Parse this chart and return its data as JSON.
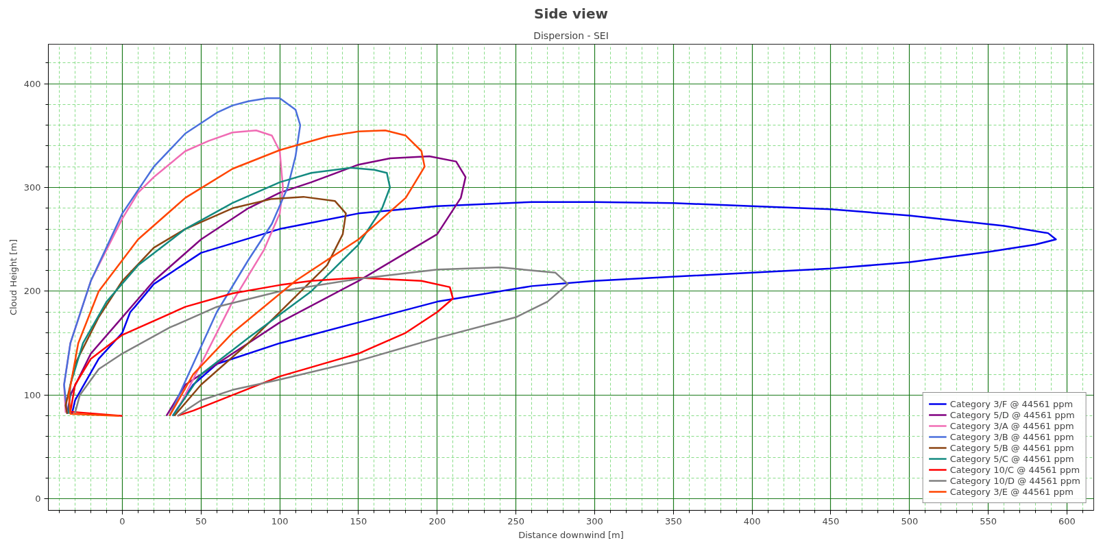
{
  "chart_data": {
    "type": "line",
    "title": "Side view",
    "subtitle": "Dispersion - SEI",
    "xlabel": "Distance downwind [m]",
    "ylabel": "Cloud Height [m]",
    "xlim": [
      -47,
      617
    ],
    "ylim": [
      -11,
      438
    ],
    "xticks": [
      {
        "value": -40,
        "label": null
      },
      {
        "value": -30,
        "label": null
      },
      {
        "value": -20,
        "label": null
      },
      {
        "value": -10,
        "label": null
      },
      0,
      {
        "value": 10,
        "label": null
      },
      {
        "value": 20,
        "label": null
      },
      {
        "value": 30,
        "label": null
      },
      {
        "value": 40,
        "label": null
      },
      50,
      {
        "value": 60,
        "label": null
      },
      {
        "value": 70,
        "label": null
      },
      {
        "value": 80,
        "label": null
      },
      {
        "value": 90,
        "label": null
      },
      100,
      {
        "value": 110,
        "label": null
      },
      {
        "value": 120,
        "label": null
      },
      {
        "value": 130,
        "label": null
      },
      {
        "value": 140,
        "label": null
      },
      150,
      {
        "value": 160,
        "label": null
      },
      {
        "value": 170,
        "label": null
      },
      {
        "value": 180,
        "label": null
      },
      {
        "value": 190,
        "label": null
      },
      200,
      {
        "value": 210,
        "label": null
      },
      {
        "value": 220,
        "label": null
      },
      {
        "value": 230,
        "label": null
      },
      {
        "value": 240,
        "label": null
      },
      250,
      {
        "value": 260,
        "label": null
      },
      {
        "value": 270,
        "label": null
      },
      {
        "value": 280,
        "label": null
      },
      {
        "value": 290,
        "label": null
      },
      300,
      {
        "value": 310,
        "label": null
      },
      {
        "value": 320,
        "label": null
      },
      {
        "value": 330,
        "label": null
      },
      {
        "value": 340,
        "label": null
      },
      350,
      {
        "value": 360,
        "label": null
      },
      {
        "value": 370,
        "label": null
      },
      {
        "value": 380,
        "label": null
      },
      {
        "value": 390,
        "label": null
      },
      400,
      {
        "value": 410,
        "label": null
      },
      {
        "value": 420,
        "label": null
      },
      {
        "value": 430,
        "label": null
      },
      {
        "value": 440,
        "label": null
      },
      450,
      {
        "value": 460,
        "label": null
      },
      {
        "value": 470,
        "label": null
      },
      {
        "value": 480,
        "label": null
      },
      {
        "value": 490,
        "label": null
      },
      500,
      {
        "value": 510,
        "label": null
      },
      {
        "value": 520,
        "label": null
      },
      {
        "value": 530,
        "label": null
      },
      {
        "value": 540,
        "label": null
      },
      550,
      {
        "value": 560,
        "label": null
      },
      {
        "value": 570,
        "label": null
      },
      {
        "value": 580,
        "label": null
      },
      {
        "value": 590,
        "label": null
      },
      600,
      {
        "value": 610,
        "label": null
      }
    ],
    "yticks": [
      0,
      {
        "value": 20,
        "label": null
      },
      {
        "value": 40,
        "label": null
      },
      {
        "value": 60,
        "label": null
      },
      {
        "value": 80,
        "label": null
      },
      100,
      {
        "value": 120,
        "label": null
      },
      {
        "value": 140,
        "label": null
      },
      {
        "value": 160,
        "label": null
      },
      {
        "value": 180,
        "label": null
      },
      200,
      {
        "value": 220,
        "label": null
      },
      {
        "value": 240,
        "label": null
      },
      {
        "value": 260,
        "label": null
      },
      {
        "value": 280,
        "label": null
      },
      300,
      {
        "value": 320,
        "label": null
      },
      {
        "value": 340,
        "label": null
      },
      {
        "value": 360,
        "label": null
      },
      {
        "value": 380,
        "label": null
      },
      400,
      {
        "value": 420,
        "label": null
      }
    ],
    "grid": true,
    "legend": "bottom right",
    "marker": "none",
    "line_style": "solid",
    "series": [
      {
        "name": "Category 3/F @ 44561 ppm",
        "color": "#0000ee",
        "x": [
          32,
          45,
          60,
          100,
          150,
          200,
          260,
          300,
          400,
          450,
          500,
          550,
          580,
          593,
          588,
          560,
          500,
          450,
          400,
          350,
          300,
          260,
          200,
          150,
          100,
          50,
          20,
          8,
          5,
          0,
          -15,
          -30,
          -32
        ],
        "values": [
          80,
          110,
          130,
          150,
          170,
          190,
          205,
          210,
          218,
          222,
          228,
          238,
          245,
          250,
          256,
          263,
          273,
          279,
          282,
          285,
          286,
          286,
          282,
          275,
          260,
          237,
          207,
          185,
          180,
          160,
          135,
          95,
          82
        ]
      },
      {
        "name": "Category 5/D @ 44561 ppm",
        "color": "#800080",
        "x": [
          28,
          40,
          60,
          100,
          150,
          200,
          215,
          218,
          212,
          195,
          170,
          150,
          120,
          100,
          80,
          50,
          20,
          0,
          -20,
          -33,
          -35
        ],
        "values": [
          80,
          110,
          130,
          170,
          210,
          255,
          290,
          310,
          325,
          330,
          328,
          322,
          305,
          295,
          280,
          250,
          210,
          175,
          140,
          100,
          82
        ]
      },
      {
        "name": "Category 3/A @ 44561 ppm",
        "color": "#f06cb4",
        "x": [
          33,
          50,
          70,
          90,
          100,
          102,
          100,
          95,
          85,
          70,
          55,
          40,
          20,
          10,
          0,
          -20,
          -33,
          -37,
          -36
        ],
        "values": [
          80,
          130,
          190,
          240,
          275,
          300,
          335,
          350,
          355,
          353,
          345,
          335,
          310,
          295,
          270,
          210,
          150,
          110,
          83
        ]
      },
      {
        "name": "Category 3/B @ 44561 ppm",
        "color": "#4a6fdc",
        "x": [
          30,
          45,
          60,
          80,
          95,
          105,
          110,
          113,
          110,
          100,
          92,
          80,
          70,
          60,
          40,
          20,
          0,
          -20,
          -33,
          -37,
          -35
        ],
        "values": [
          80,
          130,
          180,
          230,
          265,
          300,
          330,
          360,
          375,
          386,
          386,
          383,
          379,
          372,
          352,
          320,
          275,
          210,
          150,
          110,
          82
        ]
      },
      {
        "name": "Category 5/B @ 44561 ppm",
        "color": "#8b4513",
        "x": [
          33,
          50,
          80,
          110,
          130,
          140,
          142,
          135,
          115,
          95,
          70,
          40,
          20,
          0,
          -15,
          -30,
          -36,
          -35
        ],
        "values": [
          80,
          110,
          150,
          195,
          225,
          255,
          275,
          287,
          291,
          289,
          280,
          260,
          242,
          210,
          175,
          130,
          90,
          82
        ]
      },
      {
        "name": "Category 5/C @ 44561 ppm",
        "color": "#138a80",
        "x": [
          32,
          50,
          80,
          120,
          150,
          165,
          170,
          168,
          160,
          145,
          120,
          100,
          70,
          40,
          10,
          -10,
          -25,
          -33,
          -34
        ],
        "values": [
          80,
          120,
          155,
          200,
          245,
          280,
          300,
          314,
          317,
          319,
          314,
          305,
          285,
          260,
          225,
          190,
          150,
          110,
          82
        ]
      },
      {
        "name": "Category 10/C @ 44561 ppm",
        "color": "#ff0000",
        "x": [
          35,
          45,
          70,
          100,
          150,
          180,
          200,
          210,
          208,
          190,
          150,
          120,
          100,
          70,
          40,
          0,
          -20,
          -30,
          -33,
          0
        ],
        "values": [
          80,
          85,
          100,
          118,
          140,
          160,
          180,
          193,
          204,
          210,
          213,
          210,
          206,
          198,
          185,
          158,
          135,
          110,
          84,
          80
        ]
      },
      {
        "name": "Category 10/D @ 44561 ppm",
        "color": "#808080",
        "x": [
          35,
          50,
          70,
          100,
          150,
          200,
          250,
          270,
          283,
          275,
          240,
          200,
          150,
          100,
          60,
          30,
          0,
          -15,
          -27,
          -30
        ],
        "values": [
          80,
          95,
          105,
          115,
          133,
          155,
          175,
          190,
          207,
          218,
          223,
          221,
          212,
          200,
          185,
          165,
          140,
          125,
          100,
          83
        ]
      },
      {
        "name": "Category 3/E @ 44561 ppm",
        "color": "#ff4500",
        "x": [
          30,
          45,
          70,
          110,
          150,
          180,
          192,
          190,
          180,
          167,
          150,
          130,
          100,
          70,
          40,
          10,
          -15,
          -28,
          -34,
          -33,
          -2
        ],
        "values": [
          80,
          120,
          160,
          210,
          250,
          290,
          320,
          335,
          350,
          355,
          354,
          349,
          336,
          318,
          290,
          250,
          200,
          150,
          100,
          82,
          80
        ]
      }
    ]
  }
}
